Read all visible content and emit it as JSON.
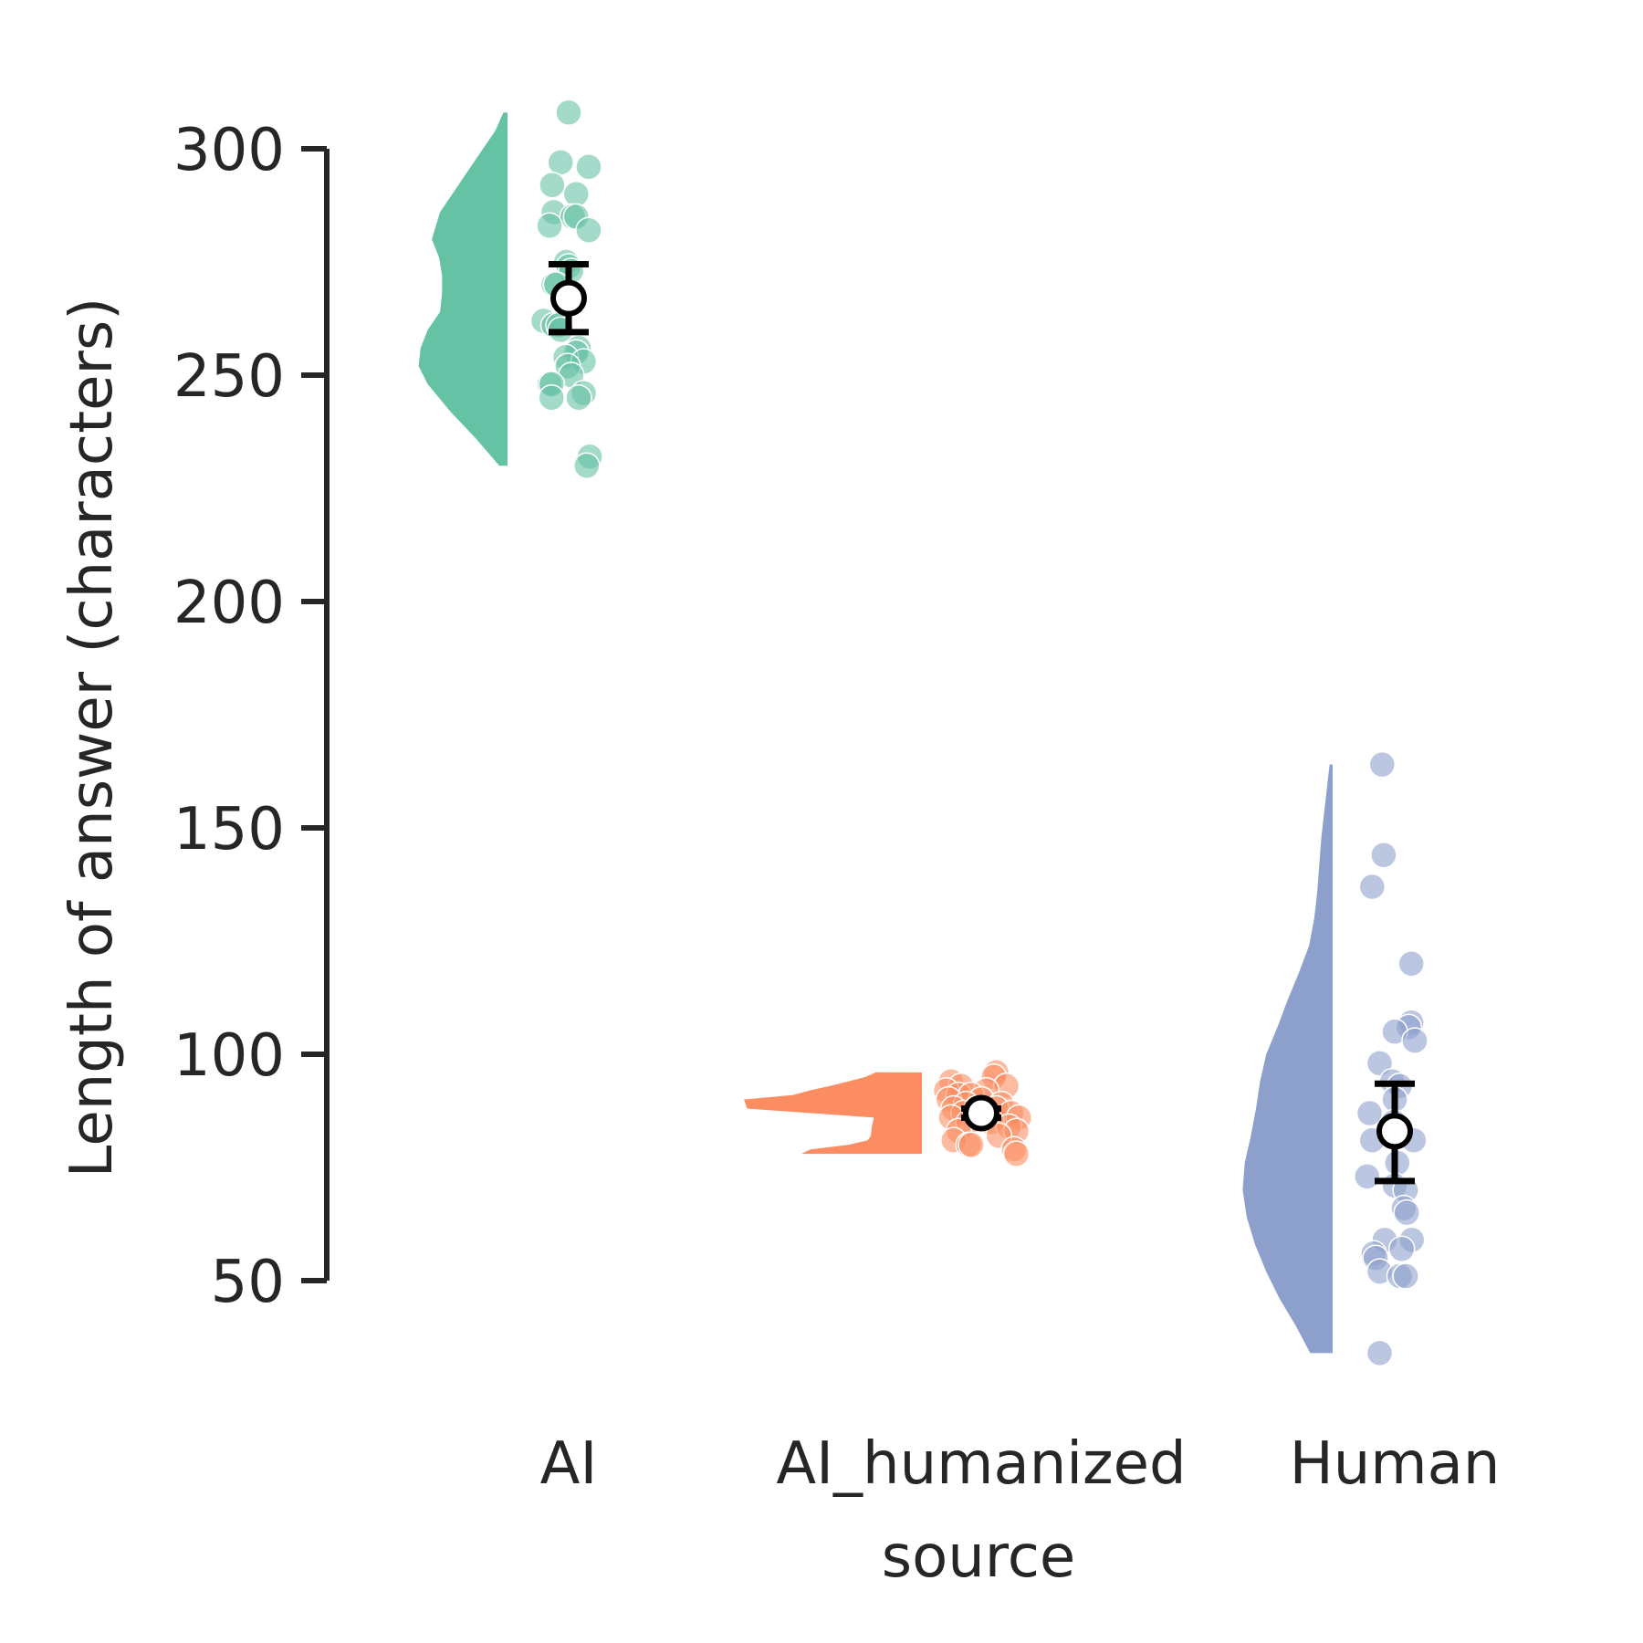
{
  "chart_data": {
    "type": "raincloud",
    "xlabel": "source",
    "ylabel": "Length of answer (characters)",
    "categories": [
      "AI",
      "AI_humanized",
      "Human"
    ],
    "yticks": [
      50,
      100,
      150,
      200,
      250,
      300
    ],
    "ylim": [
      32,
      315
    ],
    "grid": false,
    "legend": "none",
    "series": [
      {
        "category": "AI",
        "color": "#66c2a5",
        "mean": 267,
        "ci": [
          259.5,
          274.5
        ],
        "density": {
          "y": [
            230,
            236,
            242,
            248,
            252,
            256,
            260,
            264,
            268,
            272,
            276,
            280,
            286,
            292,
            298,
            304,
            308
          ],
          "w": [
            0.08,
            0.31,
            0.56,
            0.78,
            0.87,
            0.85,
            0.78,
            0.66,
            0.64,
            0.64,
            0.67,
            0.74,
            0.66,
            0.48,
            0.3,
            0.12,
            0.04
          ]
        },
        "points": [
          [
            308,
            0.0
          ],
          [
            297,
            -0.16
          ],
          [
            296,
            0.4
          ],
          [
            292,
            -0.33
          ],
          [
            290,
            0.15
          ],
          [
            286,
            -0.3
          ],
          [
            285,
            0.08
          ],
          [
            285,
            0.15
          ],
          [
            283,
            -0.38
          ],
          [
            282,
            0.4
          ],
          [
            275,
            -0.05
          ],
          [
            274,
            0.0
          ],
          [
            273,
            0.05
          ],
          [
            270,
            -0.3
          ],
          [
            270,
            -0.25
          ],
          [
            268,
            0.02
          ],
          [
            262,
            -0.5
          ],
          [
            261,
            -0.3
          ],
          [
            261,
            -0.2
          ],
          [
            260,
            -0.16
          ],
          [
            256,
            0.2
          ],
          [
            255,
            0.15
          ],
          [
            254,
            -0.06
          ],
          [
            253,
            0.3
          ],
          [
            252,
            -0.02
          ],
          [
            250,
            0.05
          ],
          [
            248,
            -0.38
          ],
          [
            248,
            -0.34
          ],
          [
            246,
            0.3
          ],
          [
            245,
            0.2
          ],
          [
            245,
            -0.34
          ],
          [
            232,
            0.42
          ],
          [
            230,
            0.36
          ]
        ]
      },
      {
        "category": "AI_humanized",
        "color": "#fc8d62",
        "mean": 87,
        "ci": [
          86,
          88
        ],
        "density": {
          "y": [
            78,
            79,
            80,
            81,
            82,
            84,
            86,
            88,
            90,
            91,
            92,
            93,
            94,
            95,
            96
          ],
          "w": [
            1.18,
            1.09,
            0.72,
            0.53,
            0.5,
            0.49,
            0.47,
            1.71,
            1.74,
            1.26,
            1.1,
            0.9,
            0.72,
            0.55,
            0.45
          ]
        },
        "points": [
          [
            96,
            0.3
          ],
          [
            95,
            0.25
          ],
          [
            94,
            -0.6
          ],
          [
            93,
            -0.4
          ],
          [
            93,
            0.5
          ],
          [
            92,
            -0.7
          ],
          [
            92,
            0.1
          ],
          [
            91,
            -0.45
          ],
          [
            91,
            -0.2
          ],
          [
            90,
            0.0
          ],
          [
            90,
            -0.65
          ],
          [
            89,
            0.4
          ],
          [
            89,
            -0.3
          ],
          [
            88,
            -0.55
          ],
          [
            88,
            -0.1
          ],
          [
            88,
            0.3
          ],
          [
            87,
            0.6
          ],
          [
            87,
            -0.35
          ],
          [
            86,
            0.05
          ],
          [
            86,
            0.75
          ],
          [
            86,
            -0.6
          ],
          [
            85,
            0.2
          ],
          [
            85,
            -0.25
          ],
          [
            84,
            0.55
          ],
          [
            83,
            0.7
          ],
          [
            83,
            -0.45
          ],
          [
            82,
            0.35
          ],
          [
            81,
            -0.55
          ],
          [
            80,
            -0.25
          ],
          [
            80,
            -0.2
          ],
          [
            79,
            0.65
          ],
          [
            78,
            0.7
          ]
        ]
      },
      {
        "category": "Human",
        "color": "#8da0cb",
        "mean": 83,
        "ci": [
          72,
          93.5
        ],
        "density": {
          "y": [
            34,
            40,
            46,
            52,
            58,
            64,
            70,
            76,
            82,
            88,
            94,
            100,
            106,
            112,
            118,
            124,
            130,
            136,
            142,
            148,
            154,
            160,
            164
          ],
          "w": [
            0.22,
            0.36,
            0.52,
            0.65,
            0.76,
            0.84,
            0.88,
            0.86,
            0.8,
            0.75,
            0.71,
            0.65,
            0.54,
            0.44,
            0.33,
            0.23,
            0.18,
            0.15,
            0.13,
            0.11,
            0.08,
            0.05,
            0.03
          ]
        },
        "points": [
          [
            164,
            -0.25
          ],
          [
            144,
            -0.22
          ],
          [
            137,
            -0.45
          ],
          [
            120,
            0.33
          ],
          [
            107,
            0.33
          ],
          [
            106,
            0.28
          ],
          [
            105,
            0.0
          ],
          [
            103,
            0.4
          ],
          [
            98,
            -0.3
          ],
          [
            94,
            -0.05
          ],
          [
            93,
            0.1
          ],
          [
            90,
            0.0
          ],
          [
            87,
            -0.5
          ],
          [
            85,
            -0.02
          ],
          [
            81,
            -0.45
          ],
          [
            81,
            0.38
          ],
          [
            76,
            0.05
          ],
          [
            73,
            -0.55
          ],
          [
            71,
            0.0
          ],
          [
            70,
            0.22
          ],
          [
            66,
            0.18
          ],
          [
            65,
            0.24
          ],
          [
            59,
            0.34
          ],
          [
            59,
            -0.2
          ],
          [
            57,
            0.14
          ],
          [
            56,
            -0.42
          ],
          [
            55,
            -0.38
          ],
          [
            52,
            -0.3
          ],
          [
            51,
            0.1
          ],
          [
            51,
            0.22
          ],
          [
            34,
            -0.3
          ]
        ]
      }
    ]
  }
}
